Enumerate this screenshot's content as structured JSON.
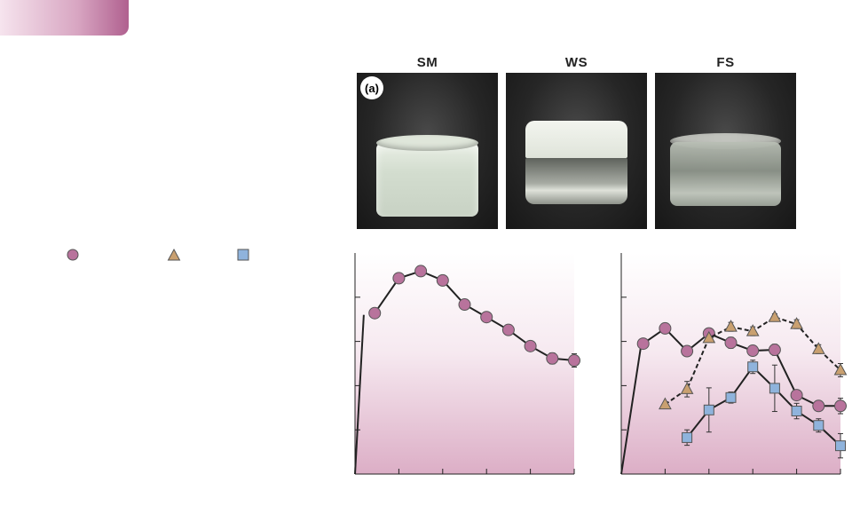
{
  "photo": {
    "panel_label": "(a)",
    "samples": [
      {
        "label": "SM",
        "state": "uniform milky emulsion"
      },
      {
        "label": "WS",
        "state": "separated, clear lower layer"
      },
      {
        "label": "FS",
        "state": "translucent"
      }
    ]
  },
  "legend": [
    {
      "marker": "circle",
      "color": "#b8739c",
      "label": ""
    },
    {
      "marker": "triangle",
      "color": "#c9a070",
      "label": ""
    },
    {
      "marker": "square",
      "color": "#8fb3dc",
      "label": ""
    }
  ],
  "colors": {
    "circle_fill": "#b8739c",
    "triangle_fill": "#c9a070",
    "square_fill": "#8fb3dc",
    "marker_edge": "#555555",
    "plot_bg_top": "#ffffff",
    "plot_bg_bottom": "#dcaec6",
    "title_tab": "#c57aa4"
  },
  "chart_data": [
    {
      "type": "line",
      "title": "",
      "xlabel": "",
      "ylabel": "",
      "xlim": [
        0,
        10
      ],
      "ylim": [
        0,
        100
      ],
      "ticks_x": [
        1,
        2,
        3,
        4,
        5,
        6,
        7,
        8,
        9,
        10
      ],
      "ticks_y": [
        20,
        40,
        60,
        80
      ],
      "origin_line": {
        "from": [
          0,
          0
        ],
        "to": [
          0.4,
          72
        ]
      },
      "series": [
        {
          "marker": "circle",
          "line": "solid",
          "x": [
            0.9,
            2.0,
            3.0,
            4.0,
            5.0,
            6.0,
            7.0,
            8.0,
            9.0,
            10.0
          ],
          "y": [
            72.8,
            88.6,
            91.8,
            87.6,
            76.7,
            71.0,
            65.2,
            57.9,
            52.3,
            51.4
          ],
          "err": [
            0,
            0,
            0,
            0,
            0,
            0,
            2.0,
            0,
            2.5,
            3.0
          ]
        }
      ]
    },
    {
      "type": "line",
      "title": "",
      "xlabel": "",
      "ylabel": "",
      "xlim": [
        0,
        10
      ],
      "ylim": [
        0,
        100
      ],
      "ticks_x": [
        1,
        2,
        3,
        4,
        5,
        6,
        7,
        8,
        9,
        10
      ],
      "ticks_y": [
        20,
        40,
        60,
        80
      ],
      "origin_line": {
        "from": [
          0,
          0
        ],
        "to": [
          0.9,
          58
        ]
      },
      "series": [
        {
          "marker": "circle",
          "line": "solid",
          "x": [
            1.0,
            2.0,
            3.0,
            4.0,
            5.0,
            6.0,
            7.0,
            8.0,
            9.0,
            10.0
          ],
          "y": [
            59.0,
            65.9,
            55.6,
            63.6,
            59.4,
            55.8,
            56.2,
            35.7,
            30.8,
            30.8
          ],
          "err": [
            0,
            0,
            2.0,
            0,
            2.5,
            0,
            2.5,
            2.0,
            2.0,
            3.5
          ]
        },
        {
          "marker": "triangle",
          "line": "dashed",
          "x": [
            2.0,
            3.0,
            4.0,
            5.0,
            6.0,
            7.0,
            8.0,
            9.0,
            10.0
          ],
          "y": [
            31.5,
            38.4,
            61.5,
            66.6,
            64.6,
            71.0,
            67.8,
            56.5,
            47.0
          ],
          "err": [
            0,
            3.5,
            0,
            2.0,
            2.0,
            1.5,
            2.0,
            2.0,
            3.0
          ]
        },
        {
          "marker": "square",
          "line": "solid",
          "x": [
            3.0,
            4.0,
            5.0,
            6.0,
            7.0,
            8.0,
            9.0,
            10.0
          ],
          "y": [
            16.5,
            29.0,
            34.6,
            48.5,
            38.8,
            28.5,
            22.0,
            12.8
          ],
          "err": [
            3.5,
            10.0,
            2.5,
            3.0,
            10.5,
            3.5,
            3.0,
            5.5
          ]
        }
      ]
    }
  ]
}
